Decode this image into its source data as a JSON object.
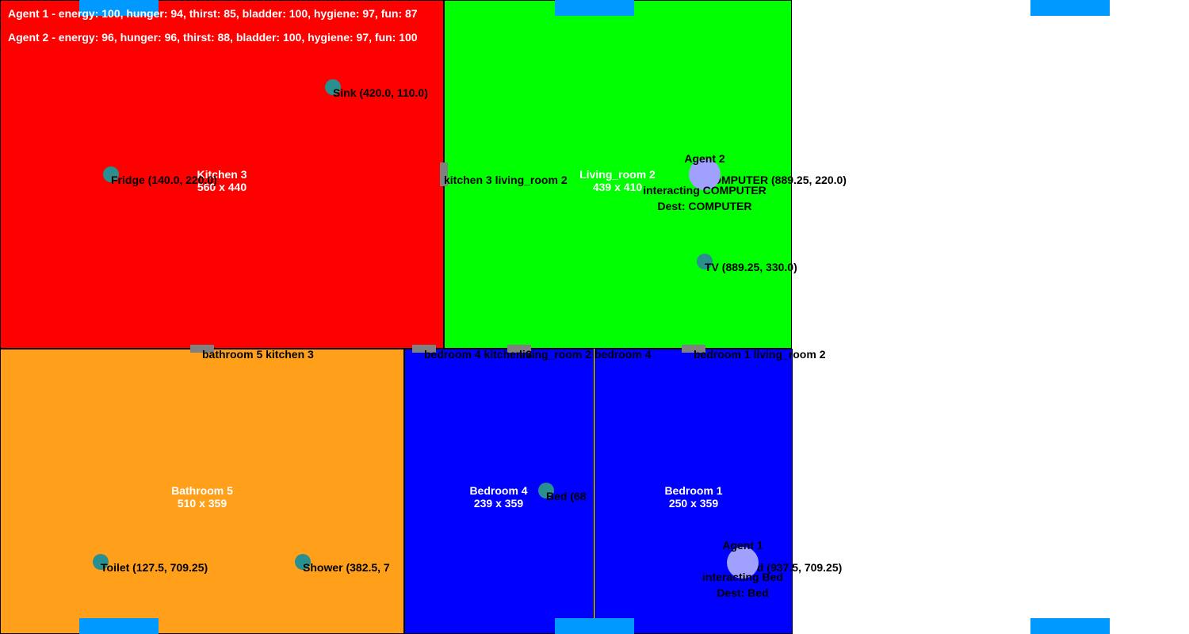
{
  "stats": [
    "Agent 1 - energy: 100, hunger: 94, thirst: 85, bladder: 100, hygiene: 97, fun: 87",
    "Agent 2 - energy: 96, hunger: 96, thirst: 88, bladder: 100, hygiene: 97, fun: 100"
  ],
  "rooms": {
    "kitchen": {
      "name": "Kitchen 3",
      "size": "560 x 440",
      "color": "#ff0000"
    },
    "living": {
      "name": "Living_room 2",
      "size": "439 x 410",
      "color": "#00ff00"
    },
    "bathroom": {
      "name": "Bathroom 5",
      "size": "510 x 359",
      "color": "#ff9f1a"
    },
    "bedroom4": {
      "name": "Bedroom 4",
      "size": "239 x 359",
      "color": "#0000ff"
    },
    "bedroom1": {
      "name": "Bedroom 1",
      "size": "250 x 359",
      "color": "#0000ff"
    }
  },
  "doors": {
    "kitchen_living": "kitchen 3 living_room 2",
    "bathroom_kitchen": "bathroom 5 kitchen 3",
    "bedroom4_kitchen": "bedroom 4 kitchen 3",
    "living_bedroom4": "living_room 2 bedroom 4",
    "bedroom1_living": "bedroom 1 living_room 2"
  },
  "objects": {
    "sink": "Sink (420.0, 110.0)",
    "fridge": "Fridge (140.0, 220.0)",
    "computer": "COMPUTER (889.25, 220.0)",
    "tv": "TV (889.25, 330.0)",
    "bed4": "Bed (68",
    "bed1": "Bed (937.5, 709.25)",
    "toilet": "Toilet (127.5, 709.25)",
    "shower": "Shower (382.5, 7"
  },
  "agents": {
    "agent2": {
      "name": "Agent 2",
      "status": "interacting COMPUTER",
      "dest": "Dest: COMPUTER"
    },
    "agent1": {
      "name": "Agent 1",
      "status": "interacting Bed",
      "dest": "Dest: Bed"
    }
  }
}
